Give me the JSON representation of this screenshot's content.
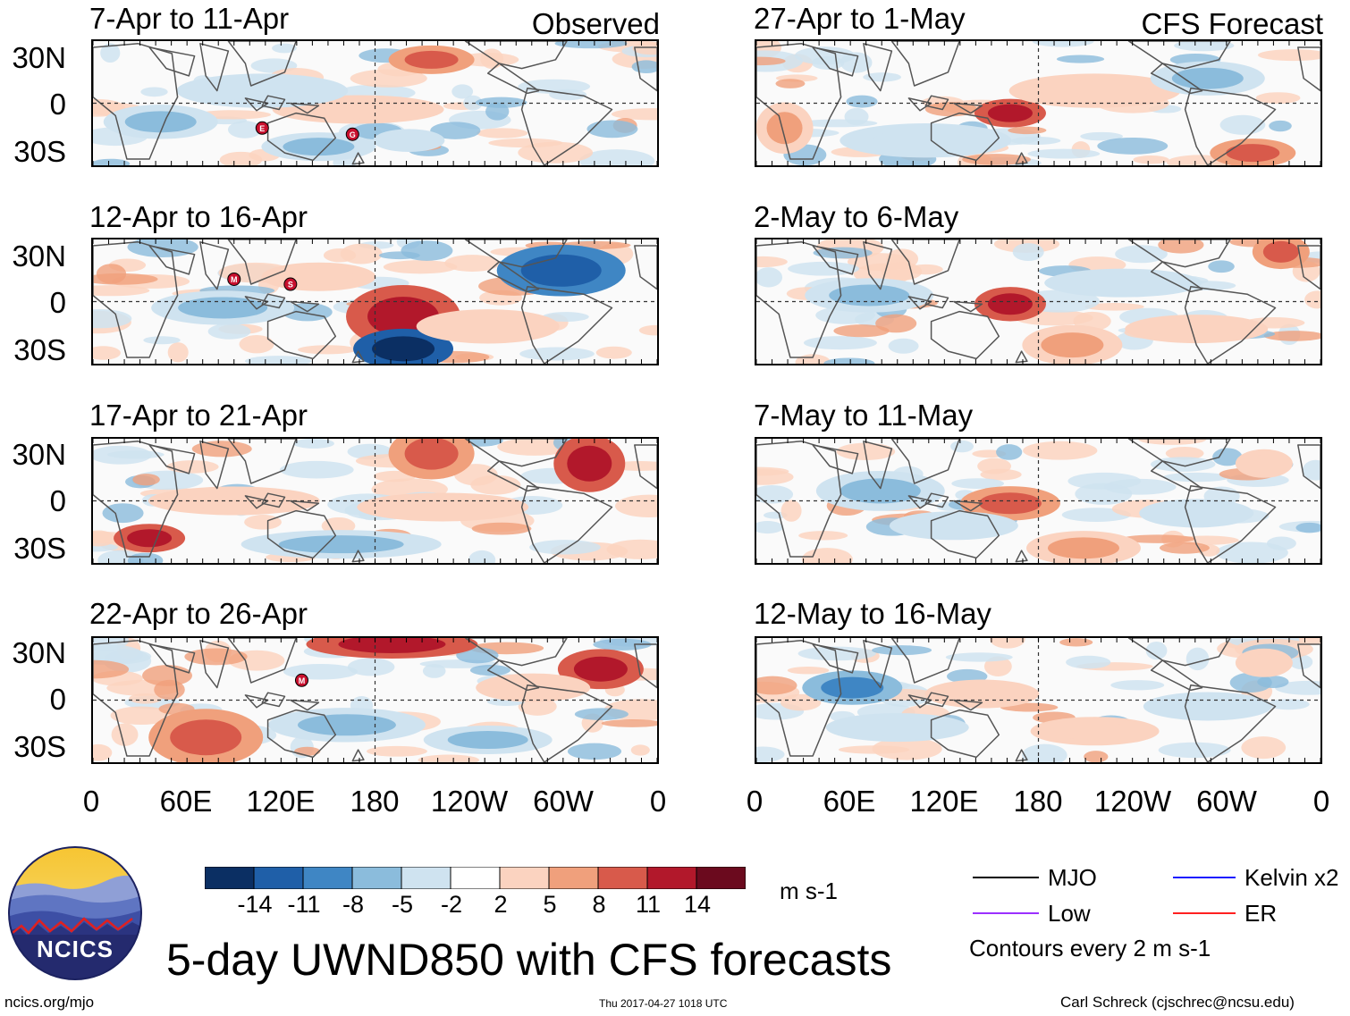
{
  "headers": {
    "left": "Observed",
    "right": "CFS Forecast"
  },
  "chart_data": {
    "type": "heatmap",
    "title": "5-day UWND850 with CFS forecasts",
    "variable": "UWND850",
    "units": "m s-1",
    "x_ticks": [
      "0",
      "60E",
      "120E",
      "180",
      "120W",
      "60W",
      "0"
    ],
    "y_ticks": [
      "30N",
      "0",
      "30S"
    ],
    "contour_note": "Contours every 2 m s-1",
    "colorbar": {
      "labels": [
        "-14",
        "-11",
        "-8",
        "-5",
        "-2",
        "2",
        "5",
        "8",
        "11",
        "14"
      ],
      "colors": [
        "#0b2f63",
        "#1f5fa8",
        "#3f86c4",
        "#8bbcdc",
        "#cfe3f0",
        "#ffffff",
        "#fbd3c0",
        "#f0a07c",
        "#d85a4b",
        "#b2182b",
        "#6b0a1e"
      ]
    },
    "panels_observed": [
      {
        "title": "7-Apr to 11-Apr",
        "labels": [
          "E",
          "G"
        ]
      },
      {
        "title": "12-Apr to 16-Apr",
        "labels": [
          "M",
          "S"
        ]
      },
      {
        "title": "17-Apr to 21-Apr",
        "labels": []
      },
      {
        "title": "22-Apr to 26-Apr",
        "labels": [
          "M"
        ]
      }
    ],
    "panels_forecast": [
      {
        "title": "27-Apr to 1-May"
      },
      {
        "title": "2-May to 6-May"
      },
      {
        "title": "7-May to 11-May"
      },
      {
        "title": "12-May to 16-May"
      }
    ]
  },
  "legend": {
    "items": [
      {
        "label": "MJO",
        "color": "#000000"
      },
      {
        "label": "Kelvin x2",
        "color": "#1a1aff"
      },
      {
        "label": "Low",
        "color": "#9b30ff"
      },
      {
        "label": "ER",
        "color": "#ff2020"
      }
    ]
  },
  "logo": {
    "text": "NCICS"
  },
  "footer": {
    "left": "ncics.org/mjo",
    "center": "Thu 2017-04-27 1018 UTC",
    "right": "Carl Schreck (cjschrec@ncsu.edu)"
  }
}
